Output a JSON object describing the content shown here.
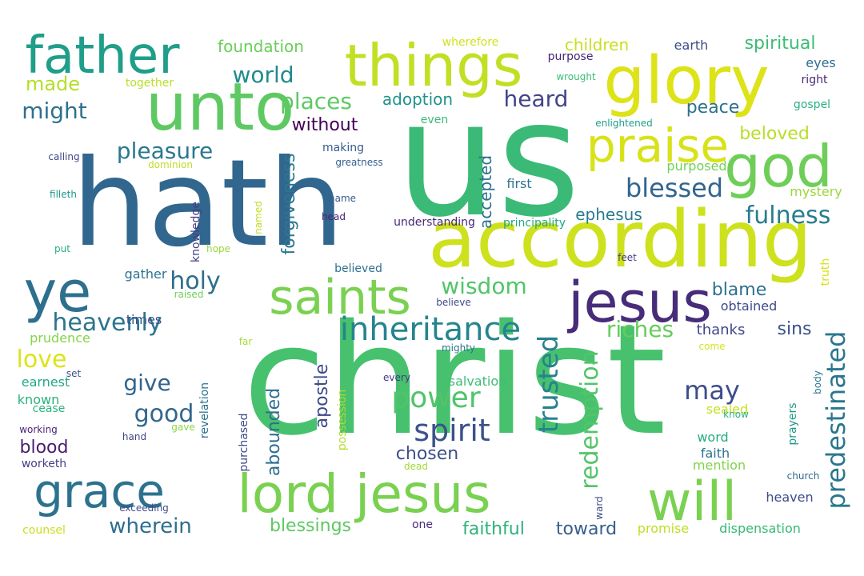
{
  "words": [
    {
      "id": "christ",
      "text": "christ",
      "color": "#47c16e"
    },
    {
      "id": "us",
      "text": "us",
      "color": "#3aba76"
    },
    {
      "id": "hath",
      "text": "hath",
      "color": "#31678e"
    },
    {
      "id": "according",
      "text": "according",
      "color": "#cde11d"
    },
    {
      "id": "glory",
      "text": "glory",
      "color": "#dde318"
    },
    {
      "id": "things",
      "text": "things",
      "color": "#c2df23"
    },
    {
      "id": "unto",
      "text": "unto",
      "color": "#5ec962"
    },
    {
      "id": "father",
      "text": "father",
      "color": "#1f9e89"
    },
    {
      "id": "god",
      "text": "god",
      "color": "#6ece58"
    },
    {
      "id": "lord-jesus",
      "text": "lord jesus",
      "color": "#7ad151"
    },
    {
      "id": "will",
      "text": "will",
      "color": "#7ad151"
    },
    {
      "id": "jesus",
      "text": "jesus",
      "color": "#472c7a"
    },
    {
      "id": "saints",
      "text": "saints",
      "color": "#7ad151"
    },
    {
      "id": "praise",
      "text": "praise",
      "color": "#d8e219"
    },
    {
      "id": "grace",
      "text": "grace",
      "color": "#2c728e"
    },
    {
      "id": "ye",
      "text": "ye",
      "color": "#2d708e"
    },
    {
      "id": "inheritance",
      "text": "inheritance",
      "color": "#25848e"
    },
    {
      "id": "power",
      "text": "power",
      "color": "#50c46a"
    },
    {
      "id": "spirit",
      "text": "spirit",
      "color": "#3b528b"
    },
    {
      "id": "trusted",
      "text": "trusted",
      "color": "#26828e"
    },
    {
      "id": "redemption",
      "text": "redemption",
      "color": "#52c569"
    },
    {
      "id": "predestinated",
      "text": "predestinated",
      "color": "#2a768e"
    },
    {
      "id": "blessed",
      "text": "blessed",
      "color": "#32658e"
    },
    {
      "id": "fulness",
      "text": "fulness",
      "color": "#287d8e"
    },
    {
      "id": "may",
      "text": "may",
      "color": "#3e4c8a"
    },
    {
      "id": "riches",
      "text": "riches",
      "color": "#67cc5c"
    },
    {
      "id": "wisdom",
      "text": "wisdom",
      "color": "#52c569"
    },
    {
      "id": "heavenly",
      "text": "heavenly",
      "color": "#2b758e"
    },
    {
      "id": "holy",
      "text": "holy",
      "color": "#2e6f8e"
    },
    {
      "id": "good",
      "text": "good",
      "color": "#31678e"
    },
    {
      "id": "give",
      "text": "give",
      "color": "#32648e"
    },
    {
      "id": "love",
      "text": "love",
      "color": "#dde318"
    },
    {
      "id": "world",
      "text": "world",
      "color": "#238a8d"
    },
    {
      "id": "places",
      "text": "places",
      "color": "#5ec962"
    },
    {
      "id": "pleasure",
      "text": "pleasure",
      "color": "#2a788e"
    },
    {
      "id": "heard",
      "text": "heard",
      "color": "#404588"
    },
    {
      "id": "might",
      "text": "might",
      "color": "#2d718e"
    },
    {
      "id": "made",
      "text": "made",
      "color": "#b5de2b"
    },
    {
      "id": "wherein",
      "text": "wherein",
      "color": "#2e6e8e"
    },
    {
      "id": "blessings",
      "text": "blessings",
      "color": "#5ec962"
    },
    {
      "id": "faithful",
      "text": "faithful",
      "color": "#2db27d"
    },
    {
      "id": "toward",
      "text": "toward",
      "color": "#355f8d"
    },
    {
      "id": "chosen",
      "text": "chosen",
      "color": "#3c4f8a"
    },
    {
      "id": "apostle",
      "text": "apostle",
      "color": "#3e4989"
    },
    {
      "id": "abounded",
      "text": "abounded",
      "color": "#2e6e8e"
    },
    {
      "id": "forgiveness",
      "text": "forgiveness",
      "color": "#2a788e"
    },
    {
      "id": "accepted",
      "text": "accepted",
      "color": "#2c728e"
    },
    {
      "id": "ephesus",
      "text": "ephesus",
      "color": "#287c8e"
    },
    {
      "id": "peace",
      "text": "peace",
      "color": "#2d718e"
    },
    {
      "id": "beloved",
      "text": "beloved",
      "color": "#b8de29"
    },
    {
      "id": "spiritual",
      "text": "spiritual",
      "color": "#3dbc74"
    },
    {
      "id": "children",
      "text": "children",
      "color": "#c8e020"
    },
    {
      "id": "foundation",
      "text": "foundation",
      "color": "#6ccd5a"
    },
    {
      "id": "adoption",
      "text": "adoption",
      "color": "#21918c"
    },
    {
      "id": "without",
      "text": "without",
      "color": "#440154"
    },
    {
      "id": "blame",
      "text": "blame",
      "color": "#2d708e"
    },
    {
      "id": "obtained",
      "text": "obtained",
      "color": "#3e4a89"
    },
    {
      "id": "sins",
      "text": "sins",
      "color": "#3b528b"
    },
    {
      "id": "thanks",
      "text": "thanks",
      "color": "#3f4788"
    },
    {
      "id": "blood",
      "text": "blood",
      "color": "#481d6f"
    },
    {
      "id": "earnest",
      "text": "earnest",
      "color": "#22a785"
    },
    {
      "id": "known",
      "text": "known",
      "color": "#2ab07f"
    },
    {
      "id": "prudence",
      "text": "prudence",
      "color": "#84d44b"
    },
    {
      "id": "times",
      "text": "times",
      "color": "#3b528b"
    },
    {
      "id": "gather",
      "text": "gather",
      "color": "#2c728e"
    },
    {
      "id": "mystery",
      "text": "mystery",
      "color": "#99d83d"
    },
    {
      "id": "purposed",
      "text": "purposed",
      "color": "#73d056"
    },
    {
      "id": "first",
      "text": "first",
      "color": "#2b758e"
    },
    {
      "id": "mention",
      "text": "mention",
      "color": "#83d34b"
    },
    {
      "id": "faith",
      "text": "faith",
      "color": "#2c728e"
    },
    {
      "id": "word",
      "text": "word",
      "color": "#25ac82"
    },
    {
      "id": "salvation",
      "text": "salvation",
      "color": "#3dbc74"
    },
    {
      "id": "sealed",
      "text": "sealed",
      "color": "#c5e021"
    },
    {
      "id": "heaven",
      "text": "heaven",
      "color": "#3e4c8a"
    },
    {
      "id": "promise",
      "text": "promise",
      "color": "#bddf26"
    },
    {
      "id": "dispensation",
      "text": "dispensation",
      "color": "#37b878"
    },
    {
      "id": "possession",
      "text": "possession",
      "color": "#b0dd2f"
    },
    {
      "id": "purchased",
      "text": "purchased",
      "color": "#3e4989"
    },
    {
      "id": "revelation",
      "text": "revelation",
      "color": "#2d708e"
    },
    {
      "id": "knowledge",
      "text": "knowledge",
      "color": "#433e85"
    },
    {
      "id": "counsel",
      "text": "counsel",
      "color": "#c8e020"
    },
    {
      "id": "cease",
      "text": "cease",
      "color": "#2db27d"
    },
    {
      "id": "working",
      "text": "working",
      "color": "#482475"
    },
    {
      "id": "worketh",
      "text": "worketh",
      "color": "#433e85"
    },
    {
      "id": "hand",
      "text": "hand",
      "color": "#3f4788"
    },
    {
      "id": "gave",
      "text": "gave",
      "color": "#8bd646"
    },
    {
      "id": "exceeding",
      "text": "exceeding",
      "color": "#3e4c8a"
    },
    {
      "id": "one",
      "text": "one",
      "color": "#472d7b"
    },
    {
      "id": "every",
      "text": "every",
      "color": "#453781"
    },
    {
      "id": "dead",
      "text": "dead",
      "color": "#a2da37"
    },
    {
      "id": "mighty",
      "text": "mighty",
      "color": "#2a788e"
    },
    {
      "id": "believe",
      "text": "believe",
      "color": "#3e4989"
    },
    {
      "id": "raised",
      "text": "raised",
      "color": "#6ece58"
    },
    {
      "id": "far",
      "text": "far",
      "color": "#a8db34"
    },
    {
      "id": "put",
      "text": "put",
      "color": "#27ad81"
    },
    {
      "id": "hope",
      "text": "hope",
      "color": "#99d83d"
    },
    {
      "id": "named",
      "text": "named",
      "color": "#c0df25"
    },
    {
      "id": "filleth",
      "text": "filleth",
      "color": "#1f9a8a"
    },
    {
      "id": "dominion",
      "text": "dominion",
      "color": "#bddf26"
    },
    {
      "id": "calling",
      "text": "calling",
      "color": "#3f4788"
    },
    {
      "id": "set",
      "text": "set",
      "color": "#3b528b"
    },
    {
      "id": "together",
      "text": "together",
      "color": "#bade28"
    },
    {
      "id": "greatness",
      "text": "greatness",
      "color": "#355f8d"
    },
    {
      "id": "name",
      "text": "name",
      "color": "#38598c"
    },
    {
      "id": "head",
      "text": "head",
      "color": "#482071"
    },
    {
      "id": "making",
      "text": "making",
      "color": "#365c8d"
    },
    {
      "id": "believed",
      "text": "believed",
      "color": "#2d708e"
    },
    {
      "id": "understanding",
      "text": "understanding",
      "color": "#482878"
    },
    {
      "id": "principality",
      "text": "principality",
      "color": "#22a785"
    },
    {
      "id": "even",
      "text": "even",
      "color": "#3aba76"
    },
    {
      "id": "enlightened",
      "text": "enlightened",
      "color": "#1f9e89"
    },
    {
      "id": "wherefore",
      "text": "wherefore",
      "color": "#d0e11c"
    },
    {
      "id": "purpose",
      "text": "purpose",
      "color": "#482475"
    },
    {
      "id": "wrought",
      "text": "wrought",
      "color": "#3dbc74"
    },
    {
      "id": "earth",
      "text": "earth",
      "color": "#3e4a89"
    },
    {
      "id": "eyes",
      "text": "eyes",
      "color": "#2e6e8e"
    },
    {
      "id": "right",
      "text": "right",
      "color": "#482878"
    },
    {
      "id": "gospel",
      "text": "gospel",
      "color": "#2ab07f"
    },
    {
      "id": "truth",
      "text": "truth",
      "color": "#d8e219"
    },
    {
      "id": "feet",
      "text": "feet",
      "color": "#433e85"
    },
    {
      "id": "come",
      "text": "come",
      "color": "#d5e21a"
    },
    {
      "id": "body",
      "text": "body",
      "color": "#2a788e"
    },
    {
      "id": "prayers",
      "text": "prayers",
      "color": "#1f9a8a"
    },
    {
      "id": "know",
      "text": "know",
      "color": "#2eb37c"
    },
    {
      "id": "church",
      "text": "church",
      "color": "#31678e"
    },
    {
      "id": "ward",
      "text": "ward",
      "color": "#3e4c8a"
    }
  ]
}
